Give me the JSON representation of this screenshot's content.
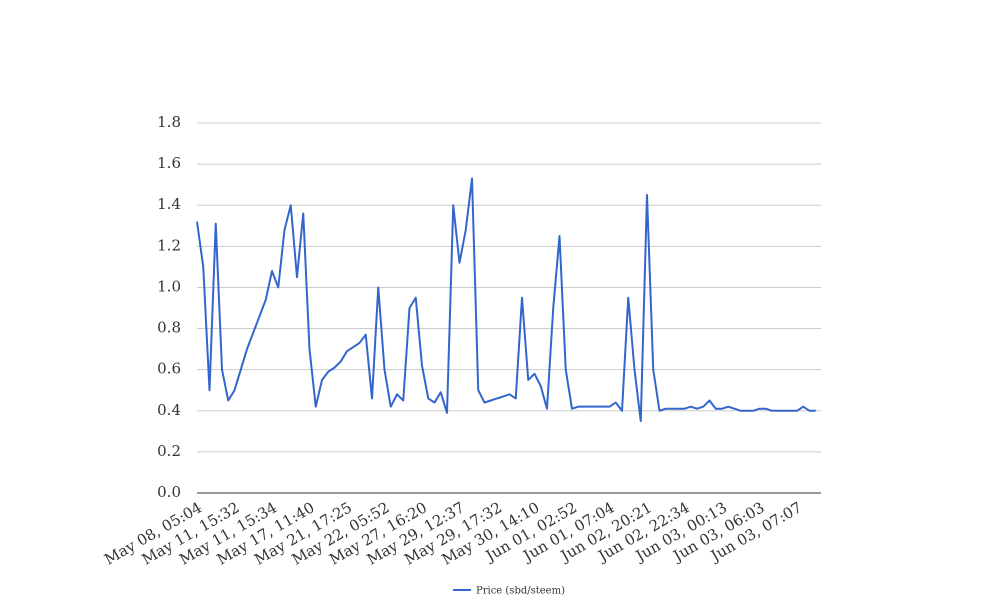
{
  "chart_data": {
    "type": "line",
    "categories": [
      "May 08, 05:04",
      null,
      null,
      null,
      null,
      null,
      "May 11, 15:32",
      null,
      null,
      null,
      null,
      null,
      "May 11, 15:34",
      null,
      null,
      null,
      null,
      null,
      "May 17, 11:40",
      null,
      null,
      null,
      null,
      null,
      "May 21, 17:25",
      null,
      null,
      null,
      null,
      null,
      "May 22, 05:52",
      null,
      null,
      null,
      null,
      null,
      "May 27, 16:20",
      null,
      null,
      null,
      null,
      null,
      "May 29, 12:37",
      null,
      null,
      null,
      null,
      null,
      "May 29, 17:32",
      null,
      null,
      null,
      null,
      null,
      "May 30, 14:10",
      null,
      null,
      null,
      null,
      null,
      "Jun 01, 02:52",
      null,
      null,
      null,
      null,
      null,
      "Jun 01, 07:04",
      null,
      null,
      null,
      null,
      null,
      "Jun 02, 20:21",
      null,
      null,
      null,
      null,
      null,
      "Jun 02, 22:34",
      null,
      null,
      null,
      null,
      null,
      "Jun 03, 00:13",
      null,
      null,
      null,
      null,
      null,
      "Jun 03, 06:03",
      null,
      null,
      null,
      null,
      null,
      "Jun 03, 07:07",
      null,
      null,
      null
    ],
    "series": [
      {
        "name": "Price (sbd/steem)",
        "color": "#3366cc",
        "values": [
          1.32,
          1.1,
          0.5,
          1.31,
          0.6,
          0.45,
          0.5,
          0.6,
          0.7,
          0.78,
          0.86,
          0.94,
          1.08,
          1.0,
          1.28,
          1.4,
          1.05,
          1.36,
          0.7,
          0.42,
          0.55,
          0.59,
          0.61,
          0.64,
          0.69,
          0.71,
          0.73,
          0.77,
          0.46,
          1.0,
          0.6,
          0.42,
          0.48,
          0.45,
          0.9,
          0.95,
          0.62,
          0.46,
          0.44,
          0.49,
          0.39,
          1.4,
          1.12,
          1.28,
          1.53,
          0.5,
          0.44,
          0.45,
          0.46,
          0.47,
          0.48,
          0.46,
          0.95,
          0.55,
          0.58,
          0.52,
          0.41,
          0.9,
          1.25,
          0.6,
          0.41,
          0.42,
          0.42,
          0.42,
          0.42,
          0.42,
          0.42,
          0.44,
          0.4,
          0.95,
          0.6,
          0.35,
          1.45,
          0.6,
          0.4,
          0.41,
          0.41,
          0.41,
          0.41,
          0.42,
          0.41,
          0.42,
          0.45,
          0.41,
          0.41,
          0.42,
          0.41,
          0.4,
          0.4,
          0.4,
          0.41,
          0.41,
          0.4,
          0.4,
          0.4,
          0.4,
          0.4,
          0.42,
          0.4,
          0.4
        ]
      }
    ],
    "ylim": [
      0,
      1.8
    ],
    "yticks": [
      {
        "value": 0,
        "label": "0.0"
      },
      0.2,
      0.4,
      0.6,
      0.8,
      {
        "value": 1,
        "label": "1.0"
      },
      1.2,
      1.4,
      1.6,
      1.8
    ],
    "grid": true
  }
}
